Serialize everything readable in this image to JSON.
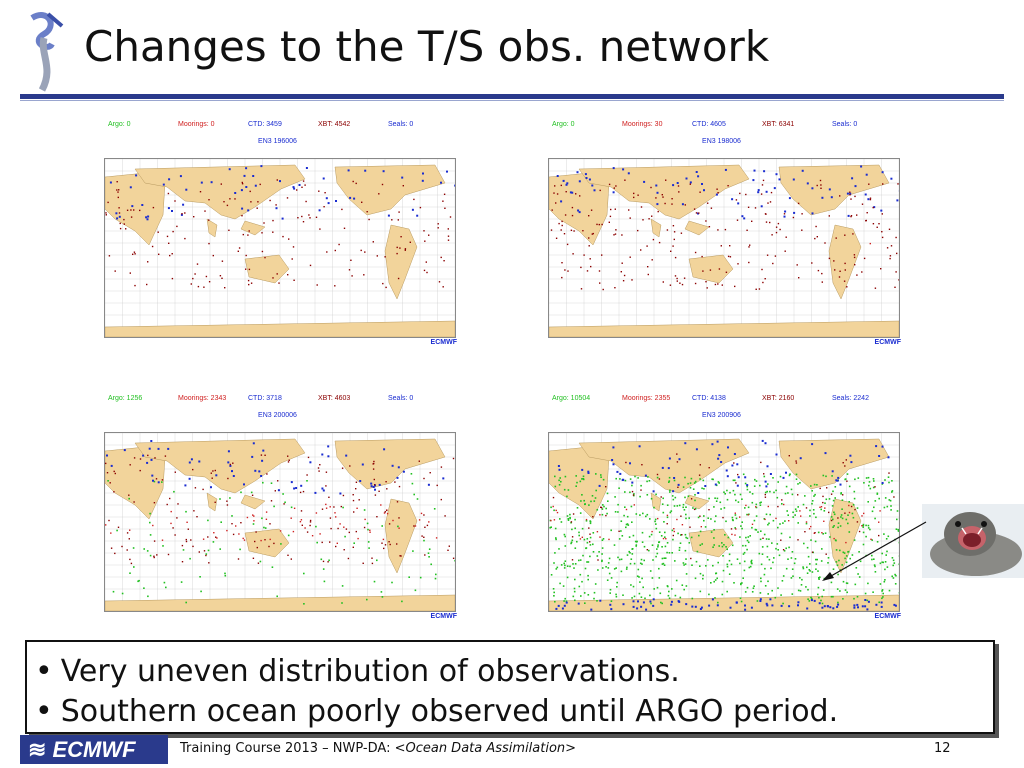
{
  "slide": {
    "title": "Changes to the T/S obs. network",
    "bullets": [
      "Very uneven distribution of observations.",
      "Southern ocean poorly observed until ARGO period."
    ],
    "footer": {
      "course": "Training Course 2013 – NWP-DA: <",
      "course_italic": "Ocean Data Assimilation",
      "course_end": ">",
      "page_number": "12",
      "logo_text": "ECMWF"
    }
  },
  "colors": {
    "title_rule": "#2a3a8c",
    "land": "#f2d49b",
    "argo": "#22c022",
    "moorings": "#d02020",
    "ctd": "#1a2cd0",
    "xbt": "#8b0000",
    "seals": "#1a2cd0"
  },
  "panels": [
    {
      "title": "EN3 196006",
      "counts": {
        "argo": "Argo: 0",
        "moorings": "Moorings: 0",
        "ctd": "CTD: 3459",
        "xbt": "XBT: 4542",
        "seals": "Seals: 0"
      },
      "logo": "ECMWF",
      "density": {
        "argo": 0,
        "moorings": 0,
        "ctd": 3459,
        "xbt": 4542,
        "seals": 0
      }
    },
    {
      "title": "EN3 198006",
      "counts": {
        "argo": "Argo: 0",
        "moorings": "Moorings: 30",
        "ctd": "CTD: 4605",
        "xbt": "XBT: 6341",
        "seals": "Seals: 0"
      },
      "logo": "ECMWF",
      "density": {
        "argo": 0,
        "moorings": 30,
        "ctd": 4605,
        "xbt": 6341,
        "seals": 0
      }
    },
    {
      "title": "EN3 200006",
      "counts": {
        "argo": "Argo: 1256",
        "moorings": "Moorings: 2343",
        "ctd": "CTD: 3718",
        "xbt": "XBT: 4603",
        "seals": "Seals: 0"
      },
      "logo": "ECMWF",
      "density": {
        "argo": 1256,
        "moorings": 2343,
        "ctd": 3718,
        "xbt": 4603,
        "seals": 0
      }
    },
    {
      "title": "EN3 200906",
      "counts": {
        "argo": "Argo: 10504",
        "moorings": "Moorings: 2355",
        "ctd": "CTD: 4138",
        "xbt": "XBT: 2160",
        "seals": "Seals: 2242"
      },
      "logo": "ECMWF",
      "density": {
        "argo": 10504,
        "moorings": 2355,
        "ctd": 4138,
        "xbt": 2160,
        "seals": 2242
      }
    }
  ]
}
